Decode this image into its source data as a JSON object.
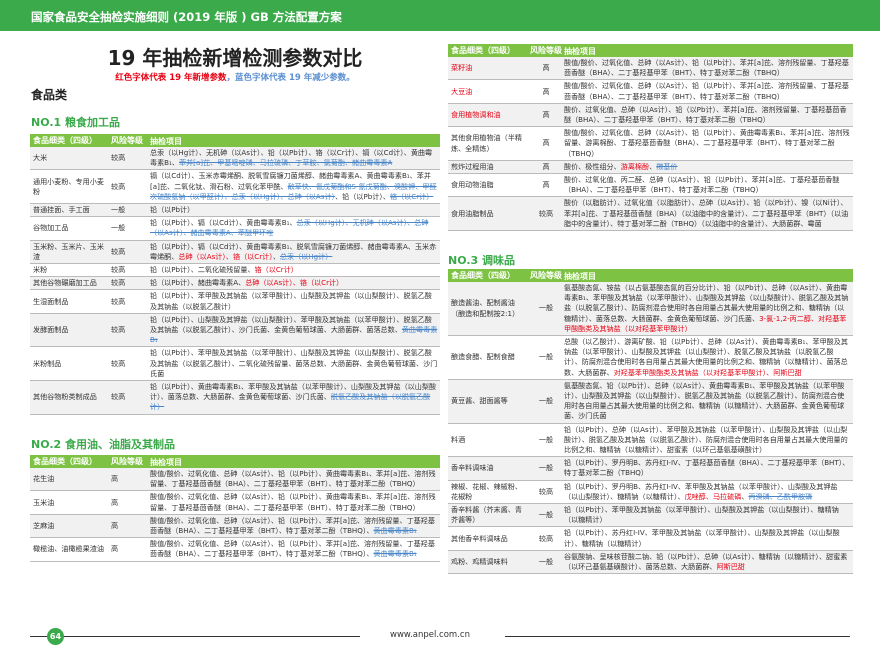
{
  "header": {
    "title": "国家食品安全抽检实施细则 (2019 年版 ) GB 方法配置方案"
  },
  "page": {
    "title": "19 年抽检新增检测参数对比",
    "legend_red": "红色字体代表 19 年新增参数",
    "legend_sep": "，",
    "legend_blue": "蓝色字体代表 19 年减少参数。",
    "category": "食品类"
  },
  "colors": {
    "brand": "#3aaa4a",
    "table_header": "#7dc242",
    "added": "#e60012",
    "removed": "#4a86c8"
  },
  "table_headers": [
    "食品细类（四级）",
    "风险等级",
    "抽检项目"
  ],
  "sections": [
    {
      "title": "NO.1 粮食加工品",
      "rows": [
        {
          "category": "大米",
          "risk": "较高",
          "items": [
            {
              "text": "总汞（以Hg计）、无机砷（以As计）、铅（以Pb计）、铬（以Cr计）、镉（以Cd计）、黄曲霉毒素B₁、",
              "status": "normal"
            },
            {
              "text": "苯并[a]芘、甲基嘧啶磷、马拉硫磷、丁草胺、氯菊酯、赭曲霉毒素A",
              "status": "removed"
            }
          ]
        },
        {
          "category": "通用小麦粉、专用小麦粉",
          "risk": "较高",
          "items": [
            {
              "text": "镉（以Cd计）、玉米赤霉烯酮、脱氧雪腐镰刀菌烯醇、赭曲霉毒素A、黄曲霉毒素B₁、苯并[a]芘、二氧化钛、滑石粉、过氧化苯甲酰、",
              "status": "normal"
            },
            {
              "text": "敌草快、氰戊菊酯和S-氰戊菊酯、溴酸钾、甲醛次硫酸氢钠（以甲醛计）、总汞（以Hg计）、总砷（以As计）",
              "status": "removed"
            },
            {
              "text": "、铅（以Pb计）、",
              "status": "normal"
            },
            {
              "text": "铬（以Cr计）",
              "status": "removed"
            }
          ]
        },
        {
          "category": "普通挂面、手工面",
          "risk": "一般",
          "items": [
            {
              "text": "铅（以Pb计）",
              "status": "normal"
            }
          ]
        },
        {
          "category": "谷物加工品",
          "risk": "一般",
          "items": [
            {
              "text": "铅（以Pb计）、镉（以Cd计）、黄曲霉毒素B₁、",
              "status": "normal"
            },
            {
              "text": "总汞（以Hg计）、无机砷（以As计）、总砷（以As计）、赭曲霉毒素A、苯醚甲环唑",
              "status": "removed"
            }
          ]
        },
        {
          "category": "玉米粉、玉米片、玉米渣",
          "risk": "较高",
          "items": [
            {
              "text": "铅（以Pb计）、镉（以Cd计）、黄曲霉毒素B₁、脱氧雪腐镰刀菌烯醇、赭曲霉毒素A、玉米赤霉烯酮、",
              "status": "normal"
            },
            {
              "text": "总砷（以As计）、铬（以Cr计）",
              "status": "added"
            },
            {
              "text": "、",
              "status": "normal"
            },
            {
              "text": "总汞（以Hg计）",
              "status": "removed"
            }
          ]
        },
        {
          "category": "米粉",
          "risk": "较高",
          "items": [
            {
              "text": "铅（以Pb计）、二氧化硫残留量、",
              "status": "normal"
            },
            {
              "text": "铬（以Cr计）",
              "status": "added"
            }
          ]
        },
        {
          "category": "其他谷物碾磨加工品",
          "risk": "较高",
          "items": [
            {
              "text": "铅（以Pb计）、赭曲霉毒素A、",
              "status": "normal"
            },
            {
              "text": "总砷（以As计）、铬（以Cr计）",
              "status": "added"
            }
          ]
        },
        {
          "category": "生湿面制品",
          "risk": "较高",
          "items": [
            {
              "text": "铅（以Pb计）、苯甲酸及其钠盐（以苯甲酸计）、山梨酸及其钾盐（以山梨酸计）、脱氢乙酸及其钠盐（以脱氢乙酸计）",
              "status": "normal"
            }
          ]
        },
        {
          "category": "发酵面制品",
          "risk": "较高",
          "items": [
            {
              "text": "铅（以Pb计）、山梨酸及其钾盐（以山梨酸计）、苯甲酸及其钠盐（以苯甲酸计）、脱氢乙酸及其钠盐（以脱氢乙酸计）、沙门氏菌、金黄色葡萄球菌、大肠菌群、菌落总数、",
              "status": "normal"
            },
            {
              "text": "黄曲霉毒素B₁",
              "status": "removed"
            }
          ]
        },
        {
          "category": "米粉制品",
          "risk": "较高",
          "items": [
            {
              "text": "铅（以Pb计）、苯甲酸及其钠盐（以苯甲酸计）、山梨酸及其钾盐（以山梨酸计）、脱氢乙酸及其钠盐（以脱氢乙酸计）、二氧化硫残留量、菌落总数、大肠菌群、金黄色葡萄球菌、沙门氏菌",
              "status": "normal"
            }
          ]
        },
        {
          "category": "其他谷物粉类制成品",
          "risk": "较高",
          "items": [
            {
              "text": "铅（以Pb计）、黄曲霉毒素B₁、苯甲酸及其钠盐（以苯甲酸计）、山梨酸及其钾盐（以山梨酸计）、菌落总数、大肠菌群、金黄色葡萄球菌、沙门氏菌、",
              "status": "normal"
            },
            {
              "text": "脱氢乙酸及其钠盐（以脱氢乙酸计）",
              "status": "removed"
            }
          ]
        }
      ]
    },
    {
      "title": "NO.2 食用油、油脂及其制品",
      "rows": [
        {
          "category": "花生油",
          "risk": "高",
          "items": [
            {
              "text": "酸值/酸价、过氧化值、总砷（以As计）、铅（以Pb计）、黄曲霉毒素B₁、苯并[a]芘、溶剂残留量、丁基羟基茴香醚（BHA）、二丁基羟基甲苯（BHT）、特丁基对苯二酚（TBHQ）",
              "status": "normal"
            }
          ]
        },
        {
          "category": "玉米油",
          "risk": "高",
          "items": [
            {
              "text": "酸值/酸价、过氧化值、总砷（以As计）、铅（以Pb计）、黄曲霉毒素B₁、苯并[a]芘、溶剂残留量、丁基羟基茴香醚（BHA）、二丁基羟基甲苯（BHT）、特丁基对苯二酚（TBHQ）",
              "status": "normal"
            }
          ]
        },
        {
          "category": "芝麻油",
          "risk": "高",
          "items": [
            {
              "text": "酸值/酸价、过氧化值、总砷（以As计）、铅（以Pb计）、苯并[a]芘、溶剂残留量、丁基羟基茴香醚（BHA）、二丁基羟基甲苯（BHT）、特丁基对苯二酚（TBHQ）、",
              "status": "normal"
            },
            {
              "text": "黄曲霉毒素B₁",
              "status": "removed"
            }
          ]
        },
        {
          "category": "橄榄油、油橄榄果渣油",
          "risk": "高",
          "items": [
            {
              "text": "酸值/酸价、过氧化值、总砷（以As计）、铅（以Pb计）、苯并[a]芘、溶剂残留量、丁基羟基茴香醚（BHA）、二丁基羟基甲苯（BHT）、特丁基对苯二酚（TBHQ）、",
              "status": "normal"
            },
            {
              "text": "黄曲霉毒素B₁",
              "status": "removed"
            }
          ]
        }
      ],
      "rows_continued": [
        {
          "category": "菜籽油",
          "category_new": true,
          "risk": "高",
          "items": [
            {
              "text": "酸值/酸价、过氧化值、总砷（以As计）、铅（以Pb计）、苯并[a]芘、溶剂残留量、丁基羟基茴香醚（BHA）、二丁基羟基甲苯（BHT）、特丁基对苯二酚（TBHQ）",
              "status": "normal"
            }
          ]
        },
        {
          "category": "大豆油",
          "category_new": true,
          "risk": "高",
          "items": [
            {
              "text": "酸值/酸价、过氧化值、总砷（以As计）、铅（以Pb计）、苯并[a]芘、溶剂残留量、丁基羟基茴香醚（BHA）、二丁基羟基甲苯（BHT）、特丁基对苯二酚（TBHQ）",
              "status": "normal"
            }
          ]
        },
        {
          "category": "食用植物调和油",
          "category_new": true,
          "risk": "高",
          "items": [
            {
              "text": "酸价、过氧化值、总砷（以As计）、铅（以Pb计）、苯并[a]芘、溶剂残留量、丁基羟基茴香醚（BHA）、二丁基羟基甲苯（BHT）、特丁基对苯二酚（TBHQ）",
              "status": "normal"
            }
          ]
        },
        {
          "category": "其他食用植物油（半精炼、全精炼）",
          "risk": "高",
          "items": [
            {
              "text": "酸值/酸价、过氧化值、总砷（以As计）、铅（以Pb计）、黄曲霉毒素B₁、苯并[a]芘、溶剂残留量、游离棉酚、丁基羟基茴香醚（BHA）、二丁基羟基甲苯（BHT）、特丁基对苯二酚（TBHQ）",
              "status": "normal"
            }
          ]
        },
        {
          "category": "煎炸过程用油",
          "risk": "高",
          "items": [
            {
              "text": "酸价、极性组分、",
              "status": "normal"
            },
            {
              "text": "游离棉酚",
              "status": "added"
            },
            {
              "text": "、",
              "status": "normal"
            },
            {
              "text": "羰基价",
              "status": "removed"
            }
          ]
        },
        {
          "category": "食用动物油脂",
          "risk": "高",
          "items": [
            {
              "text": "酸价、过氧化值、丙二醛、总砷（以As计）、铅（以Pb计）、苯并[a]芘、丁基羟基茴香醚（BHA）、二丁基羟基甲苯（BHT）、特丁基对苯二酚（TBHQ）",
              "status": "normal"
            }
          ]
        },
        {
          "category": "食用油脂制品",
          "risk": "较高",
          "items": [
            {
              "text": "酸价（以脂肪计）、过氧化值（以脂肪计）、总砷（以As计）、铅（以Pb计）、镍（以Ni计）、苯并[a]芘、丁基羟基茴香醚（BHA）（以油脂中的含量计）、二丁基羟基甲苯（BHT）（以油脂中的含量计）、特丁基对苯二酚（TBHQ）（以油脂中的含量计）、大肠菌群、霉菌",
              "status": "normal"
            }
          ]
        }
      ]
    },
    {
      "title": "NO.3 调味品",
      "rows": [
        {
          "category": "酿造酱油、配制酱油（酿造和配制按2:1）",
          "risk": "一般",
          "items": [
            {
              "text": "氨基酸态氮、铵盐（以占氨基酸态氮的百分比计）、铅（以Pb计）、总砷（以As计）、黄曲霉毒素B₁、苯甲酸及其钠盐（以苯甲酸计）、山梨酸及其钾盐（以山梨酸计）、脱氢乙酸及其钠盐（以脱氢乙酸计）、防腐剂混合使用时各自用量占其最大使用量的比例之和、糖精钠（以糖精计）、菌落总数、大肠菌群、金黄色葡萄球菌、沙门氏菌、",
              "status": "normal"
            },
            {
              "text": "3-氯-1,2-丙二醇、对羟基苯甲酸酯类及其钠盐（以对羟基苯甲酸计）",
              "status": "added"
            }
          ]
        },
        {
          "category": "酿造食醋、配制食醋",
          "risk": "一般",
          "items": [
            {
              "text": "总酸（以乙酸计）、游离矿酸、铅（以Pb计）、总砷（以As计）、黄曲霉毒素B₁、苯甲酸及其钠盐（以苯甲酸计）、山梨酸及其钾盐（以山梨酸计）、脱氢乙酸及其钠盐（以脱氢乙酸计）、防腐剂混合使用时各自用量占其最大使用量的比例之和、糖精钠（以糖精计）、菌落总数、大肠菌群、",
              "status": "normal"
            },
            {
              "text": "对羟基苯甲酸酯类及其钠盐（以对羟基苯甲酸计）、阿斯巴甜",
              "status": "added"
            }
          ]
        },
        {
          "category": "黄豆酱、甜面酱等",
          "risk": "一般",
          "items": [
            {
              "text": "氨基酸态氮、铅（以Pb计）、总砷（以As计）、黄曲霉毒素B₁、苯甲酸及其钠盐（以苯甲酸计）、山梨酸及其钾盐（以山梨酸计）、脱氢乙酸及其钠盐（以脱氢乙酸计）、防腐剂混合使用时各自用量占其最大使用量的比例之和、糖精钠（以糖精计）、大肠菌群、金黄色葡萄球菌、沙门氏菌",
              "status": "normal"
            }
          ]
        },
        {
          "category": "料酒",
          "risk": "一般",
          "items": [
            {
              "text": "铅（以Pb计）、总砷（以As计）、苯甲酸及其钠盐（以苯甲酸计）、山梨酸及其钾盐（以山梨酸计）、脱氢乙酸及其钠盐（以脱氢乙酸计）、防腐剂混合使用时各自用量占其最大使用量的比例之和、糖精钠（以糖精计）、甜蜜素（以环己基氨基磺酸计）",
              "status": "normal"
            }
          ]
        },
        {
          "category": "香辛料调味油",
          "risk": "一般",
          "items": [
            {
              "text": "铅（以Pb计）、罗丹明B、苏丹红I-IV、丁基羟基茴香醚（BHA）、二丁基羟基甲苯（BHT）、特丁基对苯二酚（TBHQ）",
              "status": "normal"
            }
          ]
        },
        {
          "category": "辣椒、花椒、辣椒粉、花椒粉",
          "risk": "较高",
          "items": [
            {
              "text": "铅（以Pb计）、罗丹明B、苏丹红I-IV、苯甲酸及其钠盐（以苯甲酸计）、山梨酸及其钾盐（以山梨酸计）、糖精钠（以糖精计）、",
              "status": "normal"
            },
            {
              "text": "戊唑醇、马拉硫磷",
              "status": "added"
            },
            {
              "text": "、",
              "status": "normal"
            },
            {
              "text": "丙溴磷、乙酰甲胺磷",
              "status": "removed"
            }
          ]
        },
        {
          "category": "香辛料酱（芥末酱、青芥酱等）",
          "risk": "一般",
          "items": [
            {
              "text": "铅（以Pb计）、苯甲酸及其钠盐（以苯甲酸计）、山梨酸及其钾盐（以山梨酸计）、糖精钠（以糖精计）",
              "status": "normal"
            }
          ]
        },
        {
          "category": "其他香辛料调味品",
          "risk": "较高",
          "items": [
            {
              "text": "铅（以Pb计）、苏丹红I-IV、苯甲酸及其钠盐（以苯甲酸计）、山梨酸及其钾盐（以山梨酸计）、糖精钠（以糖精计）",
              "status": "normal"
            }
          ]
        },
        {
          "category": "鸡粉、鸡精调味料",
          "risk": "一般",
          "items": [
            {
              "text": "谷氨酸钠、呈味核苷酸二钠、铅（以Pb计）、总砷（以As计）、糖精钠（以糖精计）、甜蜜素（以环己基氨基磺酸计）、菌落总数、大肠菌群、",
              "status": "normal"
            },
            {
              "text": "阿斯巴甜",
              "status": "added"
            }
          ]
        }
      ]
    }
  ],
  "footer": {
    "page_number": "64",
    "website": "www.anpel.com.cn"
  }
}
